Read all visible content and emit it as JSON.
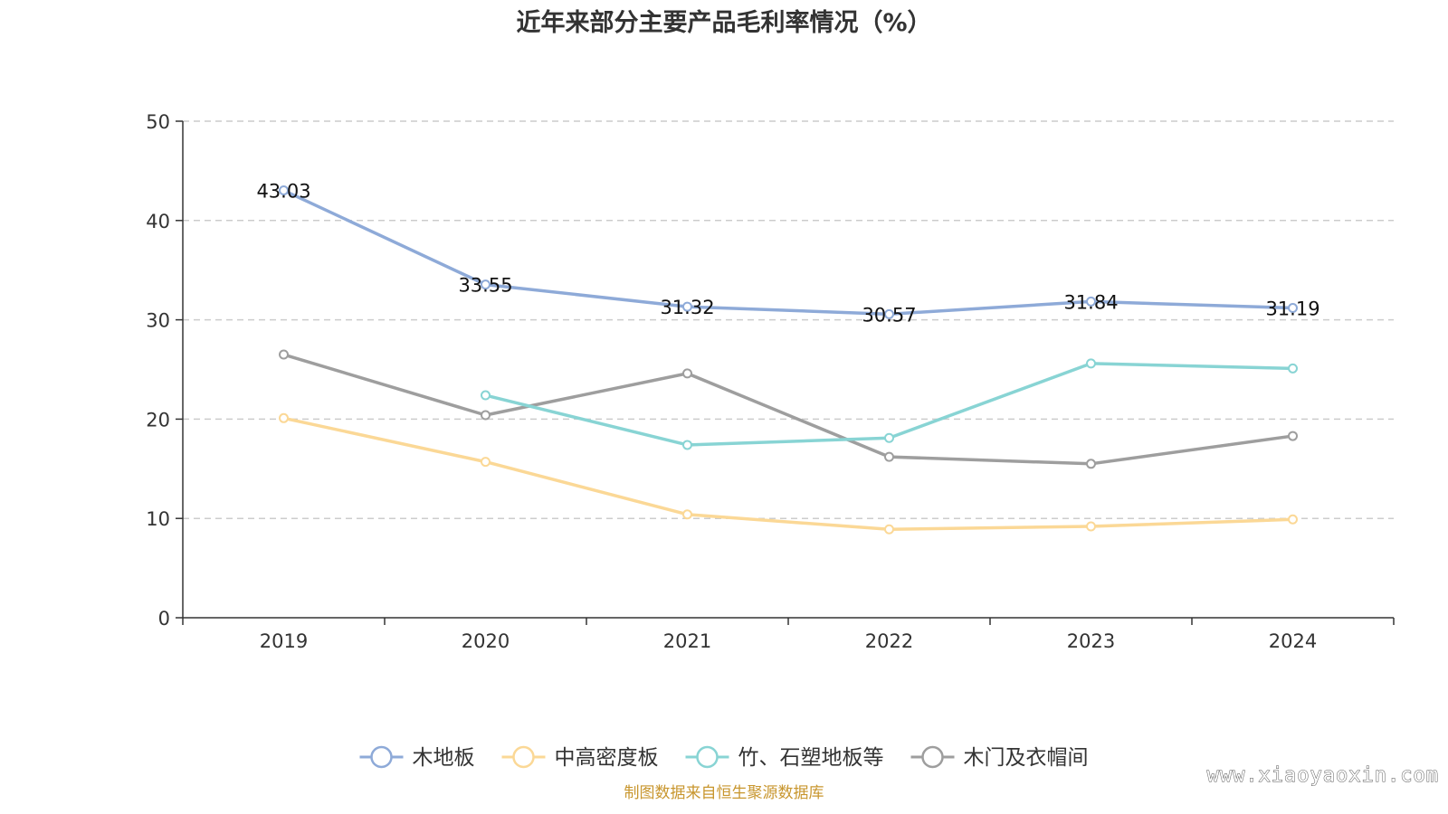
{
  "chart_data": {
    "type": "line",
    "title": "近年来部分主要产品毛利率情况（%）",
    "categories": [
      "2019",
      "2020",
      "2021",
      "2022",
      "2023",
      "2024"
    ],
    "ylim": [
      0,
      50
    ],
    "yticks": [
      0,
      10,
      20,
      30,
      40,
      50
    ],
    "grid": true,
    "legend_position": "bottom",
    "series": [
      {
        "name": "木地板",
        "color": "#8eaad8",
        "values": [
          43.03,
          33.55,
          31.32,
          30.57,
          31.84,
          31.19
        ],
        "labels": [
          "43.03",
          "33.55",
          "31.32",
          "30.57",
          "31.84",
          "31.19"
        ]
      },
      {
        "name": "中高密度板",
        "color": "#fbd896",
        "values": [
          20.1,
          15.7,
          10.4,
          8.9,
          9.2,
          9.9
        ]
      },
      {
        "name": "竹、石塑地板等",
        "color": "#88d4d4",
        "values": [
          null,
          22.4,
          17.4,
          18.1,
          25.6,
          25.1
        ]
      },
      {
        "name": "木门及衣帽间",
        "color": "#9e9e9e",
        "values": [
          26.5,
          20.4,
          24.6,
          16.2,
          15.5,
          18.3
        ]
      }
    ]
  },
  "source_note": "制图数据来自恒生聚源数据库",
  "watermark": "www.xiaoyaoxin.com"
}
